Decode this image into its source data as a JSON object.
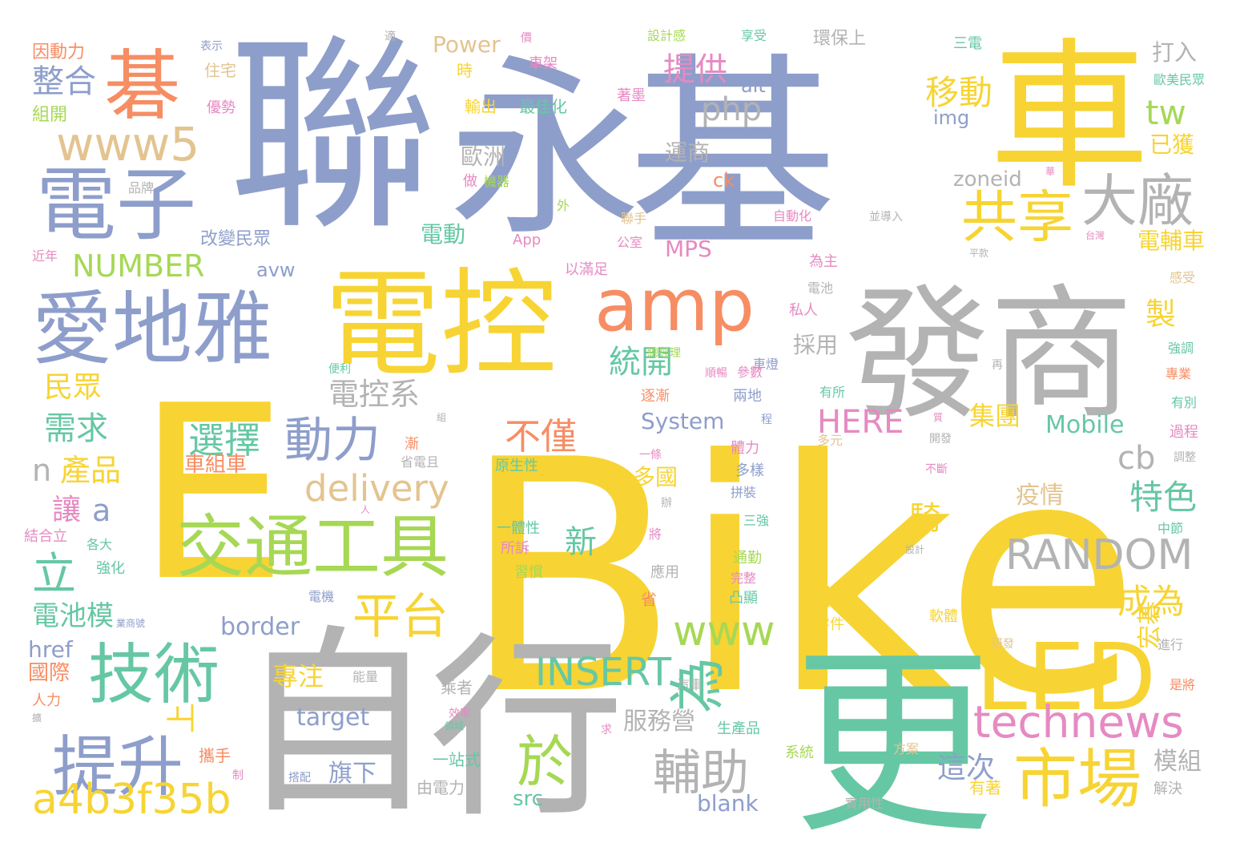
{
  "palette": {
    "yellow": "#f7d433",
    "blue": "#8e9ecb",
    "gray": "#b3b3b3",
    "green": "#66c7a4",
    "orange": "#f78d63",
    "pink": "#e68ac2",
    "tan": "#e3c490",
    "lime": "#a6d854"
  },
  "words": [
    {
      "text": "Bike",
      "color": "yellow"
    },
    {
      "text": "E",
      "color": "yellow"
    },
    {
      "text": "聯",
      "color": "blue"
    },
    {
      "text": "永",
      "color": "blue"
    },
    {
      "text": "基",
      "color": "blue"
    },
    {
      "text": "車",
      "color": "yellow"
    },
    {
      "text": "自",
      "color": "gray"
    },
    {
      "text": "行",
      "color": "gray"
    },
    {
      "text": "更",
      "color": "green"
    },
    {
      "text": "發商",
      "color": "gray"
    },
    {
      "text": "電控",
      "color": "yellow"
    },
    {
      "text": "碁",
      "color": "orange"
    },
    {
      "text": "amp",
      "color": "orange"
    },
    {
      "text": "LED",
      "color": "yellow"
    },
    {
      "text": "愛地雅",
      "color": "blue"
    },
    {
      "text": "電子",
      "color": "blue"
    },
    {
      "text": "交通工具",
      "color": "lime"
    },
    {
      "text": "技術",
      "color": "green"
    },
    {
      "text": "提升",
      "color": "blue"
    },
    {
      "text": "市場",
      "color": "yellow"
    },
    {
      "text": "為",
      "color": "green"
    },
    {
      "text": "於",
      "color": "lime"
    },
    {
      "text": "共享",
      "color": "yellow"
    },
    {
      "text": "大廠",
      "color": "gray"
    },
    {
      "text": "動力",
      "color": "blue"
    },
    {
      "text": "平台",
      "color": "yellow"
    },
    {
      "text": "輔助",
      "color": "gray"
    },
    {
      "text": "technews",
      "color": "pink"
    },
    {
      "text": "www5",
      "color": "tan"
    },
    {
      "text": "a4b3f35b",
      "color": "yellow"
    },
    {
      "text": "RANDOM",
      "color": "gray"
    },
    {
      "text": "INSERT",
      "color": "green"
    },
    {
      "text": "www",
      "color": "lime"
    },
    {
      "text": "delivery",
      "color": "tan"
    },
    {
      "text": "選擇",
      "color": "green"
    },
    {
      "text": "不僅",
      "color": "orange"
    },
    {
      "text": "NUMBER",
      "color": "lime"
    },
    {
      "text": "HERE",
      "color": "pink"
    },
    {
      "text": "移動",
      "color": "yellow"
    },
    {
      "text": "提供",
      "color": "pink"
    },
    {
      "text": "php",
      "color": "gray"
    },
    {
      "text": "tw",
      "color": "lime"
    },
    {
      "text": "整合",
      "color": "blue"
    },
    {
      "text": "統開",
      "color": "green"
    },
    {
      "text": "電控系",
      "color": "gray"
    },
    {
      "text": "特色",
      "color": "green"
    },
    {
      "text": "成為",
      "color": "yellow"
    },
    {
      "text": "cb",
      "color": "gray"
    },
    {
      "text": "立",
      "color": "green"
    },
    {
      "text": "需求",
      "color": "green"
    },
    {
      "text": "民眾",
      "color": "yellow"
    },
    {
      "text": "產品",
      "color": "yellow"
    },
    {
      "text": "n",
      "color": "gray"
    },
    {
      "text": "a",
      "color": "blue"
    },
    {
      "text": "讓",
      "color": "pink"
    },
    {
      "text": "上",
      "color": "yellow"
    },
    {
      "text": "新",
      "color": "green"
    },
    {
      "text": "騎",
      "color": "yellow"
    },
    {
      "text": "製",
      "color": "yellow"
    },
    {
      "text": "這次",
      "color": "blue"
    },
    {
      "text": "電池模",
      "color": "green"
    },
    {
      "text": "border",
      "color": "blue"
    },
    {
      "text": "href",
      "color": "blue"
    },
    {
      "text": "國際",
      "color": "orange"
    },
    {
      "text": "專注",
      "color": "yellow"
    },
    {
      "text": "target",
      "color": "blue"
    },
    {
      "text": "旗下",
      "color": "blue"
    },
    {
      "text": "blank",
      "color": "blue"
    },
    {
      "text": "src",
      "color": "green"
    },
    {
      "text": "服務營",
      "color": "gray"
    },
    {
      "text": "模組",
      "color": "gray"
    },
    {
      "text": "宏碁",
      "color": "yellow"
    },
    {
      "text": "疫情",
      "color": "tan"
    },
    {
      "text": "集團",
      "color": "yellow"
    },
    {
      "text": "Mobile",
      "color": "green"
    },
    {
      "text": "System",
      "color": "blue"
    },
    {
      "text": "MPS",
      "color": "pink"
    },
    {
      "text": "zoneid",
      "color": "gray"
    },
    {
      "text": "電輔車",
      "color": "yellow"
    },
    {
      "text": "已獲",
      "color": "yellow"
    },
    {
      "text": "打入",
      "color": "gray"
    },
    {
      "text": "Power",
      "color": "tan"
    },
    {
      "text": "img",
      "color": "blue"
    },
    {
      "text": "alt",
      "color": "blue"
    },
    {
      "text": "avw",
      "color": "blue"
    },
    {
      "text": "電動",
      "color": "green"
    },
    {
      "text": "歐洲",
      "color": "gray"
    },
    {
      "text": "運商",
      "color": "gray"
    },
    {
      "text": "ck",
      "color": "orange"
    },
    {
      "text": "多國",
      "color": "yellow"
    },
    {
      "text": "採用",
      "color": "gray"
    },
    {
      "text": "本月",
      "color": "yellow"
    },
    {
      "text": "車組車",
      "color": "orange"
    },
    {
      "text": "因動力",
      "color": "orange"
    },
    {
      "text": "組開",
      "color": "lime"
    },
    {
      "text": "住宅",
      "color": "tan"
    },
    {
      "text": "優勢",
      "color": "pink"
    },
    {
      "text": "表示",
      "color": "blue"
    },
    {
      "text": "品牌",
      "color": "gray"
    },
    {
      "text": "高",
      "color": "blue"
    },
    {
      "text": "改變民眾",
      "color": "blue"
    },
    {
      "text": "近年",
      "color": "pink"
    },
    {
      "text": "適",
      "color": "gray"
    },
    {
      "text": "價",
      "color": "pink"
    },
    {
      "text": "車架",
      "color": "pink"
    },
    {
      "text": "時",
      "color": "yellow"
    },
    {
      "text": "輸出",
      "color": "yellow"
    },
    {
      "text": "最佳化",
      "color": "green"
    },
    {
      "text": "做",
      "color": "pink"
    },
    {
      "text": "機器",
      "color": "lime"
    },
    {
      "text": "外",
      "color": "lime"
    },
    {
      "text": "App",
      "color": "pink"
    },
    {
      "text": "以滿足",
      "color": "pink"
    },
    {
      "text": "公室",
      "color": "pink"
    },
    {
      "text": "聯手",
      "color": "tan"
    },
    {
      "text": "設計感",
      "color": "lime"
    },
    {
      "text": "享受",
      "color": "green"
    },
    {
      "text": "著墨",
      "color": "pink"
    },
    {
      "text": "自動化",
      "color": "pink"
    },
    {
      "text": "環保上",
      "color": "gray"
    },
    {
      "text": "三電",
      "color": "green"
    },
    {
      "text": "歐美民眾",
      "color": "green"
    },
    {
      "text": "並導入",
      "color": "gray"
    },
    {
      "text": "台灣",
      "color": "pink"
    },
    {
      "text": "華",
      "color": "pink"
    },
    {
      "text": "為主",
      "color": "pink"
    },
    {
      "text": "電池",
      "color": "gray"
    },
    {
      "text": "私人",
      "color": "pink"
    },
    {
      "text": "車燈",
      "color": "blue"
    },
    {
      "text": "順暢",
      "color": "pink"
    },
    {
      "text": "總經理",
      "color": "lime"
    },
    {
      "text": "參數",
      "color": "pink"
    },
    {
      "text": "兩地",
      "color": "blue"
    },
    {
      "text": "逐漸",
      "color": "orange"
    },
    {
      "text": "有所",
      "color": "green"
    },
    {
      "text": "再",
      "color": "gray"
    },
    {
      "text": "平款",
      "color": "gray"
    },
    {
      "text": "感受",
      "color": "tan"
    },
    {
      "text": "強調",
      "color": "green"
    },
    {
      "text": "專業",
      "color": "orange"
    },
    {
      "text": "有別",
      "color": "green"
    },
    {
      "text": "過程",
      "color": "pink"
    },
    {
      "text": "調整",
      "color": "gray"
    },
    {
      "text": "中節",
      "color": "green"
    },
    {
      "text": "設計",
      "color": "gray"
    },
    {
      "text": "便利",
      "color": "green"
    },
    {
      "text": "結合立",
      "color": "pink"
    },
    {
      "text": "各大",
      "color": "green"
    },
    {
      "text": "強化",
      "color": "green"
    },
    {
      "text": "業商號",
      "color": "blue"
    },
    {
      "text": "人力",
      "color": "orange"
    },
    {
      "text": "擴",
      "color": "gray"
    },
    {
      "text": "攜手",
      "color": "orange"
    },
    {
      "text": "制",
      "color": "pink"
    },
    {
      "text": "能量",
      "color": "gray"
    },
    {
      "text": "乘者",
      "color": "gray"
    },
    {
      "text": "效率",
      "color": "pink"
    },
    {
      "text": "領域",
      "color": "green"
    },
    {
      "text": "一站式",
      "color": "green"
    },
    {
      "text": "由電力",
      "color": "gray"
    },
    {
      "text": "求",
      "color": "pink"
    },
    {
      "text": "汽車",
      "color": "gray"
    },
    {
      "text": "生產品",
      "color": "green"
    },
    {
      "text": "系統",
      "color": "lime"
    },
    {
      "text": "實用性",
      "color": "gray"
    },
    {
      "text": "方案",
      "color": "tan"
    },
    {
      "text": "研發",
      "color": "tan"
    },
    {
      "text": "有著",
      "color": "yellow"
    },
    {
      "text": "解決",
      "color": "gray"
    },
    {
      "text": "是將",
      "color": "orange"
    },
    {
      "text": "進行",
      "color": "gray"
    },
    {
      "text": "軟體",
      "color": "yellow"
    },
    {
      "text": "零件",
      "color": "yellow"
    },
    {
      "text": "電機",
      "color": "blue"
    },
    {
      "text": "省",
      "color": "orange"
    },
    {
      "text": "應用",
      "color": "gray"
    },
    {
      "text": "凸顯",
      "color": "green"
    },
    {
      "text": "完整",
      "color": "pink"
    },
    {
      "text": "通勤",
      "color": "lime"
    },
    {
      "text": "三強",
      "color": "green"
    },
    {
      "text": "將",
      "color": "pink"
    },
    {
      "text": "辦",
      "color": "gray"
    },
    {
      "text": "拼裝",
      "color": "blue"
    },
    {
      "text": "多樣",
      "color": "blue"
    },
    {
      "text": "體力",
      "color": "pink"
    },
    {
      "text": "一條",
      "color": "pink"
    },
    {
      "text": "程",
      "color": "blue"
    },
    {
      "text": "多元",
      "color": "tan"
    },
    {
      "text": "開發",
      "color": "gray"
    },
    {
      "text": "不斷",
      "color": "pink"
    },
    {
      "text": "質",
      "color": "pink"
    },
    {
      "text": "一體性",
      "color": "green"
    },
    {
      "text": "所訴",
      "color": "pink"
    },
    {
      "text": "習慣",
      "color": "lime"
    },
    {
      "text": "原生性",
      "color": "green"
    },
    {
      "text": "省電且",
      "color": "gray"
    },
    {
      "text": "漸",
      "color": "orange"
    },
    {
      "text": "組",
      "color": "gray"
    },
    {
      "text": "人",
      "color": "pink"
    },
    {
      "text": "搭配",
      "color": "blue"
    }
  ]
}
